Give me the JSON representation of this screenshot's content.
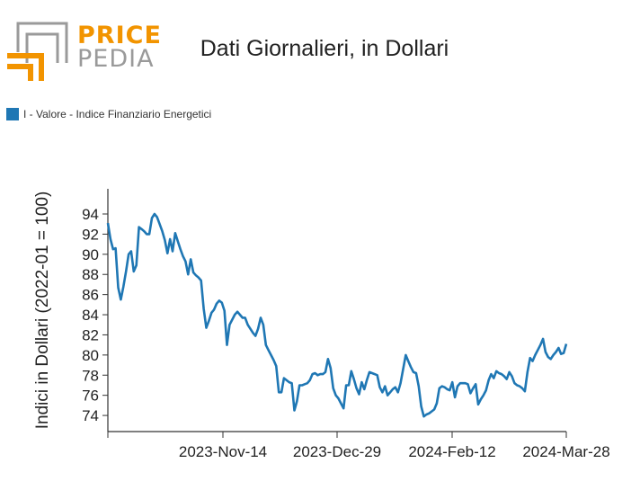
{
  "logo": {
    "line1": "PRICE",
    "line2": "PEDIA",
    "color_primary": "#f29400",
    "color_secondary": "#9a9a9a"
  },
  "title": "Dati Giornalieri, in Dollari",
  "chart_data": {
    "type": "line",
    "title": "Dati Giornalieri, in Dollari",
    "ylabel": "Indici in Dollari (2022-01 = 100)",
    "xlabel": "",
    "ylim": [
      72.4,
      96.5
    ],
    "yticks": [
      74,
      76,
      78,
      80,
      82,
      84,
      86,
      88,
      90,
      92,
      94
    ],
    "xticks": [
      "2023-Nov-14",
      "2023-Dec-29",
      "2024-Feb-12",
      "2024-Mar-28"
    ],
    "grid": false,
    "legend_position": "top-left",
    "series": [
      {
        "name": "I - Valore - Indice Finanziario Energetici",
        "color": "#1f77b4",
        "values": [
          93.1,
          91.5,
          90.5,
          90.6,
          86.7,
          85.5,
          86.8,
          88.3,
          90.0,
          90.3,
          88.3,
          88.9,
          92.7,
          92.5,
          92.3,
          92.0,
          92.0,
          93.6,
          94.0,
          93.7,
          93.0,
          92.3,
          91.4,
          90.1,
          91.5,
          90.3,
          92.1,
          91.3,
          90.5,
          89.8,
          89.3,
          88.0,
          89.5,
          88.2,
          87.9,
          87.7,
          87.4,
          84.6,
          82.7,
          83.4,
          84.2,
          84.5,
          85.1,
          85.4,
          85.2,
          84.4,
          81.0,
          83.0,
          83.5,
          84.0,
          84.3,
          84.0,
          83.7,
          83.7,
          83.0,
          82.6,
          82.2,
          81.9,
          82.6,
          83.7,
          83.0,
          81.0,
          80.5,
          80.0,
          79.5,
          78.9,
          76.3,
          76.3,
          77.7,
          77.5,
          77.3,
          77.2,
          74.5,
          75.4,
          77.0,
          77.0,
          77.1,
          77.2,
          77.5,
          78.1,
          78.2,
          78.0,
          78.1,
          78.1,
          78.3,
          79.6,
          78.7,
          76.7,
          76.0,
          75.7,
          75.2,
          74.7,
          77.0,
          77.0,
          78.4,
          77.6,
          76.7,
          76.1,
          77.3,
          76.6,
          77.5,
          78.3,
          78.2,
          78.1,
          78.0,
          76.8,
          76.3,
          76.9,
          76.0,
          76.3,
          76.6,
          76.8,
          76.3,
          77.2,
          78.6,
          80.0,
          79.4,
          78.8,
          78.3,
          78.2,
          76.9,
          74.9,
          73.9,
          74.1,
          74.2,
          74.4,
          74.6,
          75.2,
          76.7,
          76.9,
          76.8,
          76.6,
          76.5,
          77.3,
          75.8,
          76.9,
          77.2,
          77.2,
          77.2,
          77.1,
          76.2,
          76.7,
          77.1,
          75.1,
          75.6,
          76.0,
          76.5,
          77.5,
          78.1,
          77.7,
          78.4,
          78.2,
          78.1,
          77.9,
          77.6,
          78.3,
          77.9,
          77.2,
          77.0,
          76.9,
          76.7,
          76.4,
          78.3,
          79.7,
          79.4,
          80.0,
          80.5,
          81.0,
          81.6,
          80.3,
          79.8,
          79.6,
          80.0,
          80.3,
          80.7,
          80.1,
          80.2,
          81.1
        ]
      }
    ]
  }
}
